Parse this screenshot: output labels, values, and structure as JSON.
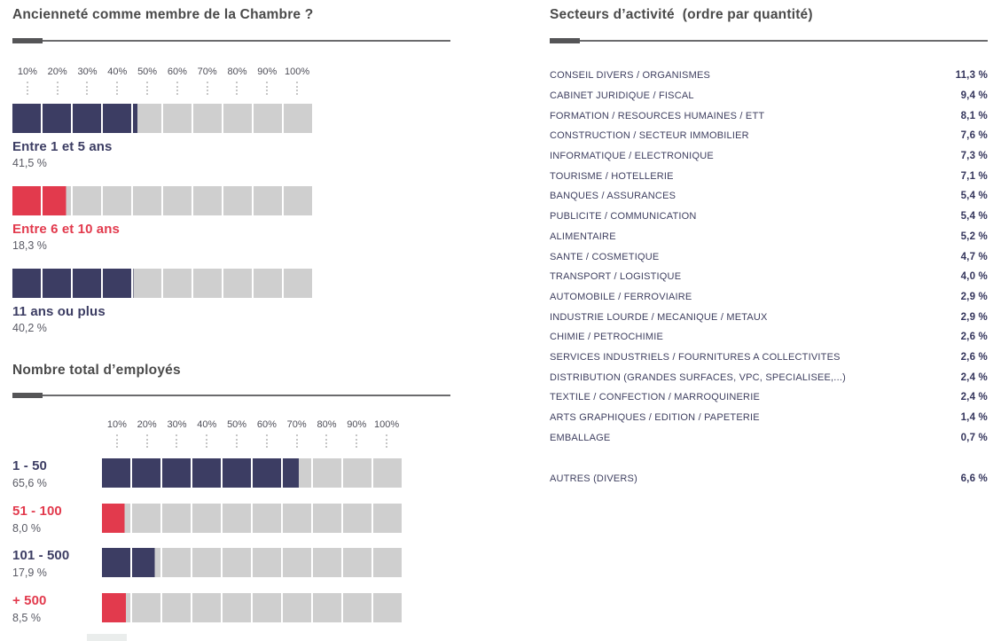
{
  "colors": {
    "navy": "#3C3D63",
    "red": "#E23A4D",
    "segment_grey": "#CFCFCF",
    "title_grey": "#4A4A4A",
    "value_grey": "#595A64"
  },
  "chart_data": [
    {
      "type": "bar",
      "title": "Ancienneté comme membre de la Chambre ?",
      "axis_ticks": [
        "10%",
        "20%",
        "30%",
        "40%",
        "50%",
        "60%",
        "70%",
        "80%",
        "90%",
        "100%"
      ],
      "xlim": [
        0,
        100
      ],
      "segments_per_bar": 10,
      "label_position": "below",
      "categories": [
        "Entre 1 et 5 ans",
        "Entre 6 et 10 ans",
        "11 ans ou plus"
      ],
      "values": [
        41.5,
        18.3,
        40.2
      ],
      "value_labels": [
        "41,5 %",
        "18,3 %",
        "40,2 %"
      ],
      "bar_colors": [
        "navy",
        "red",
        "navy"
      ]
    },
    {
      "type": "bar",
      "title": "Nombre total d’employés",
      "axis_ticks": [
        "10%",
        "20%",
        "30%",
        "40%",
        "50%",
        "60%",
        "70%",
        "80%",
        "90%",
        "100%"
      ],
      "xlim": [
        0,
        100
      ],
      "segments_per_bar": 10,
      "label_position": "left",
      "categories": [
        "1 - 50",
        "51 - 100",
        "101 - 500",
        "+ 500"
      ],
      "values": [
        65.6,
        8.0,
        17.9,
        8.5
      ],
      "value_labels": [
        "65,6 %",
        "8,0 %",
        "17,9 %",
        "8,5 %"
      ],
      "bar_colors": [
        "navy",
        "red",
        "navy",
        "red"
      ]
    },
    {
      "type": "table",
      "title": "Secteurs d’activité  (ordre par quantité)",
      "rows": [
        {
          "label": "CONSEIL DIVERS / ORGANISMES",
          "value": "11,3 %"
        },
        {
          "label": "CABINET JURIDIQUE / FISCAL",
          "value": "9,4 %"
        },
        {
          "label": "FORMATION / RESOURCES HUMAINES / ETT",
          "value": "8,1 %"
        },
        {
          "label": "CONSTRUCTION / SECTEUR IMMOBILIER",
          "value": "7,6 %"
        },
        {
          "label": "INFORMATIQUE / ELECTRONIQUE",
          "value": "7,3 %"
        },
        {
          "label": "TOURISME / HOTELLERIE",
          "value": "7,1 %"
        },
        {
          "label": "BANQUES / ASSURANCES",
          "value": "5,4 %"
        },
        {
          "label": "PUBLICITE / COMMUNICATION",
          "value": "5,4 %"
        },
        {
          "label": "ALIMENTAIRE",
          "value": "5,2 %"
        },
        {
          "label": "SANTE / COSMETIQUE",
          "value": "4,7 %"
        },
        {
          "label": "TRANSPORT / LOGISTIQUE",
          "value": "4,0 %"
        },
        {
          "label": "AUTOMOBILE / FERROVIAIRE",
          "value": "2,9 %"
        },
        {
          "label": "INDUSTRIE LOURDE / MECANIQUE / METAUX",
          "value": "2,9 %"
        },
        {
          "label": "CHIMIE / PETROCHIMIE",
          "value": "2,6 %"
        },
        {
          "label": "SERVICES INDUSTRIELS / FOURNITURES A COLLECTIVITES",
          "value": "2,6 %"
        },
        {
          "label": "DISTRIBUTION (GRANDES SURFACES, VPC, SPECIALISEE,...)",
          "value": "2,4 %"
        },
        {
          "label": "TEXTILE / CONFECTION / MARROQUINERIE",
          "value": "2,4 %"
        },
        {
          "label": "ARTS GRAPHIQUES / EDITION / PAPETERIE",
          "value": "1,4 %"
        },
        {
          "label": "EMBALLAGE",
          "value": "0,7 %"
        }
      ],
      "footer": {
        "label": "AUTRES (DIVERS)",
        "value": "6,6 %"
      }
    }
  ]
}
